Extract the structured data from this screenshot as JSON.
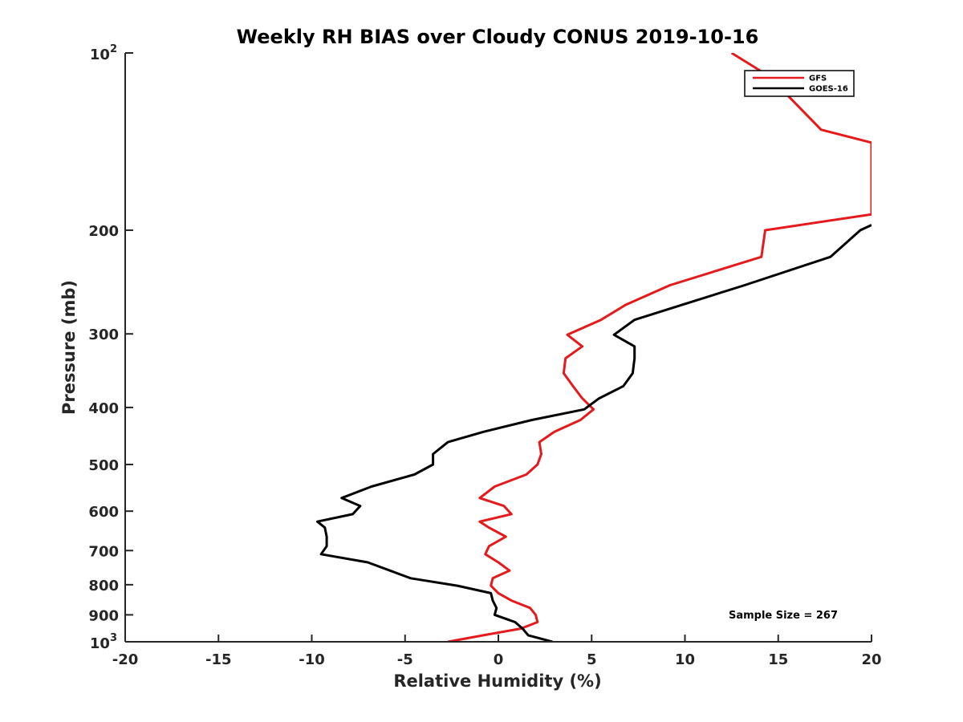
{
  "chart_data": {
    "type": "line",
    "title": "Weekly RH BIAS over Cloudy CONUS 2019-10-16",
    "xlabel": "Relative Humidity (%)",
    "ylabel": "Pressure (mb)",
    "xlim": [
      -20,
      20
    ],
    "ylim": [
      100,
      1000
    ],
    "yscale": "log",
    "y_reversed": true,
    "x_ticks": [
      -20,
      -15,
      -10,
      -5,
      0,
      5,
      10,
      15,
      20
    ],
    "x_tick_labels": [
      "-20",
      "-15",
      "-10",
      "-5",
      "0",
      "5",
      "10",
      "15",
      "20"
    ],
    "y_ticks": [
      100,
      200,
      300,
      400,
      500,
      600,
      700,
      800,
      900,
      1000
    ],
    "y_tick_labels": [
      "",
      "200",
      "300",
      "400",
      "500",
      "600",
      "700",
      "800",
      "900",
      ""
    ],
    "y_tick_pow": [
      {
        "value": 100,
        "base": "10",
        "exp": "2"
      },
      {
        "value": 1000,
        "base": "10",
        "exp": "3"
      }
    ],
    "grid": false,
    "legend": {
      "position": "top-right"
    },
    "annotation": "Sample Size = 267",
    "series": [
      {
        "name": "GFS",
        "color": "#e41a1c",
        "points": [
          [
            12.5,
            100
          ],
          [
            14.0,
            107
          ],
          [
            15.5,
            118
          ],
          [
            17.3,
            135
          ],
          [
            20.0,
            142
          ],
          [
            20.0,
            188
          ],
          [
            14.3,
            200
          ],
          [
            14.1,
            222
          ],
          [
            9.2,
            248
          ],
          [
            6.8,
            268
          ],
          [
            5.5,
            284
          ],
          [
            3.7,
            301
          ],
          [
            4.5,
            315
          ],
          [
            3.6,
            330
          ],
          [
            3.5,
            350
          ],
          [
            4.0,
            368
          ],
          [
            4.5,
            386
          ],
          [
            5.1,
            403
          ],
          [
            4.4,
            420
          ],
          [
            3.0,
            440
          ],
          [
            2.2,
            458
          ],
          [
            2.3,
            480
          ],
          [
            2.1,
            500
          ],
          [
            1.5,
            520
          ],
          [
            -0.2,
            545
          ],
          [
            -1.0,
            570
          ],
          [
            0.3,
            588
          ],
          [
            0.7,
            607
          ],
          [
            -1.0,
            625
          ],
          [
            -0.5,
            640
          ],
          [
            0.4,
            663
          ],
          [
            -0.5,
            688
          ],
          [
            -0.7,
            710
          ],
          [
            0.0,
            733
          ],
          [
            0.6,
            757
          ],
          [
            -0.3,
            780
          ],
          [
            -0.4,
            803
          ],
          [
            0.0,
            827
          ],
          [
            0.7,
            851
          ],
          [
            1.7,
            876
          ],
          [
            2.0,
            900
          ],
          [
            2.1,
            926
          ],
          [
            1.2,
            950
          ],
          [
            -0.8,
            975
          ],
          [
            -2.7,
            1000
          ]
        ]
      },
      {
        "name": "GOES-16",
        "color": "#000000",
        "points": [
          [
            20.0,
            196
          ],
          [
            19.4,
            200
          ],
          [
            17.8,
            222
          ],
          [
            13.2,
            248
          ],
          [
            9.8,
            268
          ],
          [
            7.3,
            284
          ],
          [
            6.2,
            301
          ],
          [
            7.3,
            315
          ],
          [
            7.3,
            330
          ],
          [
            7.2,
            350
          ],
          [
            6.7,
            368
          ],
          [
            5.4,
            386
          ],
          [
            4.6,
            403
          ],
          [
            1.8,
            420
          ],
          [
            -0.8,
            440
          ],
          [
            -2.7,
            458
          ],
          [
            -3.5,
            480
          ],
          [
            -3.5,
            500
          ],
          [
            -4.5,
            520
          ],
          [
            -6.8,
            545
          ],
          [
            -8.4,
            570
          ],
          [
            -7.4,
            588
          ],
          [
            -7.8,
            607
          ],
          [
            -9.7,
            625
          ],
          [
            -9.3,
            640
          ],
          [
            -9.2,
            663
          ],
          [
            -9.2,
            688
          ],
          [
            -9.5,
            710
          ],
          [
            -7.0,
            733
          ],
          [
            -5.8,
            757
          ],
          [
            -4.7,
            780
          ],
          [
            -2.2,
            803
          ],
          [
            -0.4,
            827
          ],
          [
            -0.3,
            851
          ],
          [
            -0.1,
            876
          ],
          [
            -0.2,
            900
          ],
          [
            0.9,
            926
          ],
          [
            1.3,
            950
          ],
          [
            1.6,
            975
          ],
          [
            2.9,
            1000
          ]
        ]
      }
    ]
  }
}
